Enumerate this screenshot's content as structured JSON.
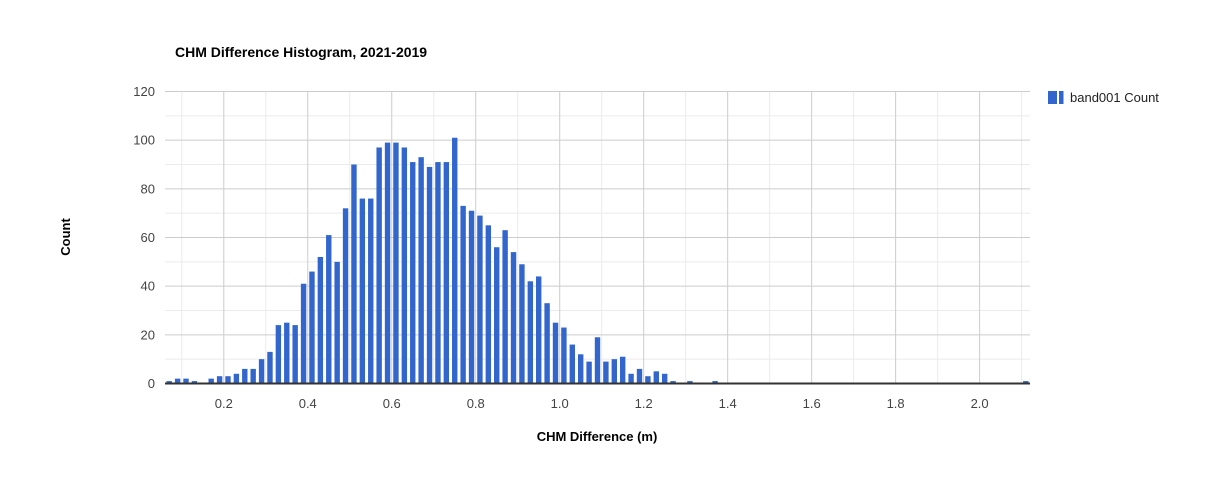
{
  "page": {
    "background": "#ffffff"
  },
  "chart": {
    "title": "CHM Difference Histogram, 2021-2019",
    "legend": {
      "label": "band001 Count",
      "swatch_color": "#3366cc"
    },
    "x_axis": {
      "title": "CHM Difference (m)",
      "tick_labels": [
        "0.2",
        "0.4",
        "0.6",
        "0.8",
        "1.0",
        "1.2",
        "1.4",
        "1.6",
        "1.8",
        "2.0"
      ],
      "tick_values": [
        0.2,
        0.4,
        0.6,
        0.8,
        1.0,
        1.2,
        1.4,
        1.6,
        1.8,
        2.0
      ],
      "minor_step": 0.1
    },
    "y_axis": {
      "title": "Count",
      "tick_labels": [
        "0",
        "20",
        "40",
        "60",
        "80",
        "100",
        "120"
      ],
      "tick_values": [
        0,
        20,
        40,
        60,
        80,
        100,
        120
      ],
      "minor_step": 10
    },
    "colors": {
      "bar": "#3366cc",
      "major_grid": "#cccccc",
      "minor_grid": "#ebebeb",
      "baseline": "#333333",
      "tick_label": "#444444"
    }
  },
  "chart_data": {
    "type": "bar",
    "title": "CHM Difference Histogram, 2021-2019",
    "xlabel": "CHM Difference (m)",
    "ylabel": "Count",
    "series_name": "band001 Count",
    "legend_position": "right-top",
    "grid": true,
    "bucket_width": 0.02,
    "xlim": [
      0.06,
      2.12
    ],
    "ylim": [
      0,
      120
    ],
    "bin_centers": [
      0.07,
      0.09,
      0.11,
      0.13,
      0.15,
      0.17,
      0.19,
      0.21,
      0.23,
      0.25,
      0.27,
      0.29,
      0.31,
      0.33,
      0.35,
      0.37,
      0.39,
      0.41,
      0.43,
      0.45,
      0.47,
      0.49,
      0.51,
      0.53,
      0.55,
      0.57,
      0.59,
      0.61,
      0.63,
      0.65,
      0.67,
      0.69,
      0.71,
      0.73,
      0.75,
      0.77,
      0.79,
      0.81,
      0.83,
      0.85,
      0.87,
      0.89,
      0.91,
      0.93,
      0.95,
      0.97,
      0.99,
      1.01,
      1.03,
      1.05,
      1.07,
      1.09,
      1.11,
      1.13,
      1.15,
      1.17,
      1.19,
      1.21,
      1.23,
      1.25,
      1.27,
      1.29,
      1.31,
      1.33,
      1.35,
      1.37,
      2.11
    ],
    "counts": [
      1,
      2,
      2,
      1,
      0,
      2,
      3,
      3,
      4,
      6,
      6,
      10,
      13,
      24,
      25,
      24,
      41,
      46,
      52,
      61,
      50,
      72,
      90,
      76,
      76,
      97,
      99,
      99,
      97,
      91,
      93,
      89,
      91,
      91,
      101,
      73,
      71,
      69,
      65,
      56,
      63,
      54,
      49,
      42,
      44,
      33,
      25,
      23,
      16,
      12,
      9,
      19,
      9,
      10,
      11,
      4,
      6,
      3,
      5,
      4,
      1,
      0,
      1,
      0,
      0,
      1,
      1
    ]
  }
}
